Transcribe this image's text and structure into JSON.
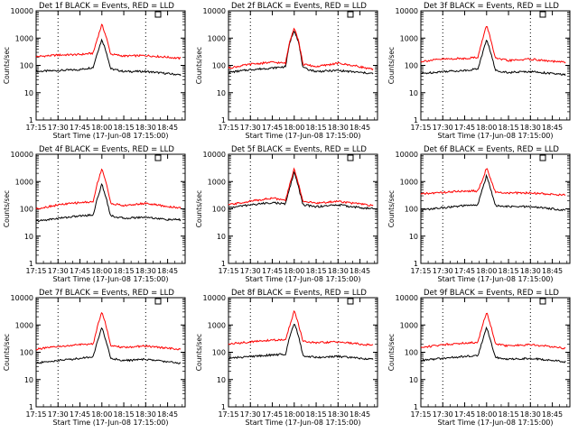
{
  "colors": {
    "events": "#000000",
    "lld": "#ff0000",
    "background": "#ffffff"
  },
  "shared": {
    "xlabel": "Start Time (17-Jun-08 17:15:00)",
    "ylabel": "Counts/sec",
    "x_tick_labels": [
      "17:15",
      "17:30",
      "17:45",
      "18:00",
      "18:15",
      "18:30",
      "18:45"
    ],
    "y_tick_labels": [
      "1",
      "10",
      "100",
      "1000",
      "10000"
    ],
    "y_scale": "log"
  },
  "chart_data": [
    {
      "type": "line",
      "title": "Det 1f BLACK = Events, RED = LLD",
      "xlabel": "Start Time (17-Jun-08 17:15:00)",
      "ylabel": "Counts/sec",
      "xlim": [
        "17:15",
        "18:57"
      ],
      "ylim": [
        1,
        10000
      ],
      "yscale": "log",
      "grid": "vertical dotted lines at 17:30 and 18:30",
      "x": [
        "17:15",
        "17:30",
        "17:45",
        "17:54",
        "17:57",
        "18:00",
        "18:03",
        "18:06",
        "18:15",
        "18:30",
        "18:45",
        "18:54"
      ],
      "series": [
        {
          "name": "Events",
          "color": "#000000",
          "values": [
            60,
            65,
            70,
            85,
            300,
            900,
            320,
            75,
            60,
            60,
            50,
            45
          ]
        },
        {
          "name": "LLD",
          "color": "#ff0000",
          "values": [
            210,
            240,
            250,
            280,
            1000,
            3200,
            1100,
            260,
            220,
            230,
            200,
            180
          ]
        }
      ]
    },
    {
      "type": "line",
      "title": "Det 2f BLACK = Events, RED = LLD",
      "xlabel": "Start Time (17-Jun-08 17:15:00)",
      "ylabel": "Counts/sec",
      "xlim": [
        "17:15",
        "18:57"
      ],
      "ylim": [
        1,
        10000
      ],
      "yscale": "log",
      "grid": "vertical dotted lines at 17:30 and 18:30",
      "x": [
        "17:15",
        "17:30",
        "17:45",
        "17:54",
        "17:57",
        "18:00",
        "18:03",
        "18:06",
        "18:15",
        "18:30",
        "18:45",
        "18:54"
      ],
      "series": [
        {
          "name": "Events",
          "color": "#000000",
          "values": [
            55,
            70,
            80,
            90,
            700,
            2000,
            700,
            80,
            60,
            65,
            55,
            50
          ]
        },
        {
          "name": "LLD",
          "color": "#ff0000",
          "values": [
            80,
            110,
            130,
            120,
            800,
            2500,
            800,
            110,
            90,
            120,
            90,
            70
          ]
        }
      ]
    },
    {
      "type": "line",
      "title": "Det 3f BLACK = Events, RED = LLD",
      "xlabel": "Start Time (17-Jun-08 17:15:00)",
      "ylabel": "Counts/sec",
      "xlim": [
        "17:15",
        "18:57"
      ],
      "ylim": [
        1,
        10000
      ],
      "yscale": "log",
      "grid": "vertical dotted lines at 17:30 and 18:30",
      "x": [
        "17:15",
        "17:30",
        "17:45",
        "17:54",
        "17:57",
        "18:00",
        "18:03",
        "18:06",
        "18:15",
        "18:30",
        "18:45",
        "18:54"
      ],
      "series": [
        {
          "name": "Events",
          "color": "#000000",
          "values": [
            50,
            60,
            65,
            75,
            250,
            900,
            280,
            65,
            55,
            60,
            50,
            45
          ]
        },
        {
          "name": "LLD",
          "color": "#ff0000",
          "values": [
            140,
            170,
            180,
            200,
            800,
            3000,
            850,
            180,
            150,
            170,
            140,
            130
          ]
        }
      ]
    },
    {
      "type": "line",
      "title": "Det 4f BLACK = Events, RED = LLD",
      "xlabel": "Start Time (17-Jun-08 17:15:00)",
      "ylabel": "Counts/sec",
      "xlim": [
        "17:15",
        "18:57"
      ],
      "ylim": [
        1,
        10000
      ],
      "yscale": "log",
      "grid": "vertical dotted lines at 17:30 and 18:30",
      "x": [
        "17:15",
        "17:30",
        "17:45",
        "17:54",
        "17:57",
        "18:00",
        "18:03",
        "18:06",
        "18:15",
        "18:30",
        "18:45",
        "18:54"
      ],
      "series": [
        {
          "name": "Events",
          "color": "#000000",
          "values": [
            35,
            45,
            55,
            60,
            250,
            800,
            250,
            55,
            45,
            50,
            40,
            40
          ]
        },
        {
          "name": "LLD",
          "color": "#ff0000",
          "values": [
            100,
            140,
            170,
            180,
            900,
            3000,
            900,
            160,
            130,
            160,
            120,
            110
          ]
        }
      ]
    },
    {
      "type": "line",
      "title": "Det 5f BLACK = Events, RED = LLD",
      "xlabel": "Start Time (17-Jun-08 17:15:00)",
      "ylabel": "Counts/sec",
      "xlim": [
        "17:15",
        "18:57"
      ],
      "ylim": [
        1,
        10000
      ],
      "yscale": "log",
      "grid": "vertical dotted lines at 17:30 and 18:30",
      "x": [
        "17:15",
        "17:30",
        "17:45",
        "17:54",
        "17:57",
        "18:00",
        "18:03",
        "18:06",
        "18:15",
        "18:30",
        "18:45",
        "18:54"
      ],
      "series": [
        {
          "name": "Events",
          "color": "#000000",
          "values": [
            110,
            140,
            170,
            150,
            600,
            2300,
            600,
            140,
            120,
            140,
            110,
            100
          ]
        },
        {
          "name": "LLD",
          "color": "#ff0000",
          "values": [
            140,
            190,
            250,
            200,
            800,
            3000,
            800,
            190,
            160,
            190,
            150,
            130
          ]
        }
      ]
    },
    {
      "type": "line",
      "title": "Det 6f BLACK = Events, RED = LLD",
      "xlabel": "Start Time (17-Jun-08 17:15:00)",
      "ylabel": "Counts/sec",
      "xlim": [
        "17:15",
        "18:57"
      ],
      "ylim": [
        1,
        10000
      ],
      "yscale": "log",
      "grid": "vertical dotted lines at 17:30 and 18:30",
      "x": [
        "17:15",
        "17:30",
        "17:45",
        "17:54",
        "17:57",
        "18:00",
        "18:03",
        "18:06",
        "18:15",
        "18:30",
        "18:45",
        "18:54"
      ],
      "series": [
        {
          "name": "Events",
          "color": "#000000",
          "values": [
            90,
            110,
            130,
            140,
            500,
            1700,
            500,
            130,
            120,
            120,
            100,
            90
          ]
        },
        {
          "name": "LLD",
          "color": "#ff0000",
          "values": [
            350,
            400,
            450,
            450,
            1100,
            3300,
            1100,
            400,
            380,
            380,
            340,
            320
          ]
        }
      ]
    },
    {
      "type": "line",
      "title": "Det 7f BLACK = Events, RED = LLD",
      "xlabel": "Start Time (17-Jun-08 17:15:00)",
      "ylabel": "Counts/sec",
      "xlim": [
        "17:15",
        "18:57"
      ],
      "ylim": [
        1,
        10000
      ],
      "yscale": "log",
      "grid": "vertical dotted lines at 17:30 and 18:30",
      "x": [
        "17:15",
        "17:30",
        "17:45",
        "17:54",
        "17:57",
        "18:00",
        "18:03",
        "18:06",
        "18:15",
        "18:30",
        "18:45",
        "18:54"
      ],
      "series": [
        {
          "name": "Events",
          "color": "#000000",
          "values": [
            40,
            50,
            60,
            70,
            250,
            800,
            250,
            60,
            50,
            55,
            45,
            40
          ]
        },
        {
          "name": "LLD",
          "color": "#ff0000",
          "values": [
            130,
            160,
            190,
            200,
            900,
            3200,
            900,
            170,
            150,
            170,
            140,
            130
          ]
        }
      ]
    },
    {
      "type": "line",
      "title": "Det 8f BLACK = Events, RED = LLD",
      "xlabel": "Start Time (17-Jun-08 17:15:00)",
      "ylabel": "Counts/sec",
      "xlim": [
        "17:15",
        "18:57"
      ],
      "ylim": [
        1,
        10000
      ],
      "yscale": "log",
      "grid": "vertical dotted lines at 17:30 and 18:30",
      "x": [
        "17:15",
        "17:30",
        "17:45",
        "17:54",
        "17:57",
        "18:00",
        "18:03",
        "18:06",
        "18:15",
        "18:30",
        "18:45",
        "18:54"
      ],
      "series": [
        {
          "name": "Events",
          "color": "#000000",
          "values": [
            60,
            70,
            80,
            85,
            400,
            1200,
            400,
            75,
            65,
            70,
            60,
            55
          ]
        },
        {
          "name": "LLD",
          "color": "#ff0000",
          "values": [
            200,
            240,
            280,
            280,
            1000,
            3300,
            1000,
            250,
            220,
            240,
            200,
            180
          ]
        }
      ]
    },
    {
      "type": "line",
      "title": "Det 9f BLACK = Events, RED = LLD",
      "xlabel": "Start Time (17-Jun-08 17:15:00)",
      "ylabel": "Counts/sec",
      "xlim": [
        "17:15",
        "18:57"
      ],
      "ylim": [
        1,
        10000
      ],
      "yscale": "log",
      "grid": "vertical dotted lines at 17:30 and 18:30",
      "x": [
        "17:15",
        "17:30",
        "17:45",
        "17:54",
        "17:57",
        "18:00",
        "18:03",
        "18:06",
        "18:15",
        "18:30",
        "18:45",
        "18:54"
      ],
      "series": [
        {
          "name": "Events",
          "color": "#000000",
          "values": [
            50,
            60,
            70,
            75,
            250,
            800,
            250,
            65,
            55,
            60,
            50,
            45
          ]
        },
        {
          "name": "LLD",
          "color": "#ff0000",
          "values": [
            150,
            190,
            220,
            230,
            900,
            3000,
            900,
            200,
            170,
            190,
            160,
            140
          ]
        }
      ]
    }
  ]
}
